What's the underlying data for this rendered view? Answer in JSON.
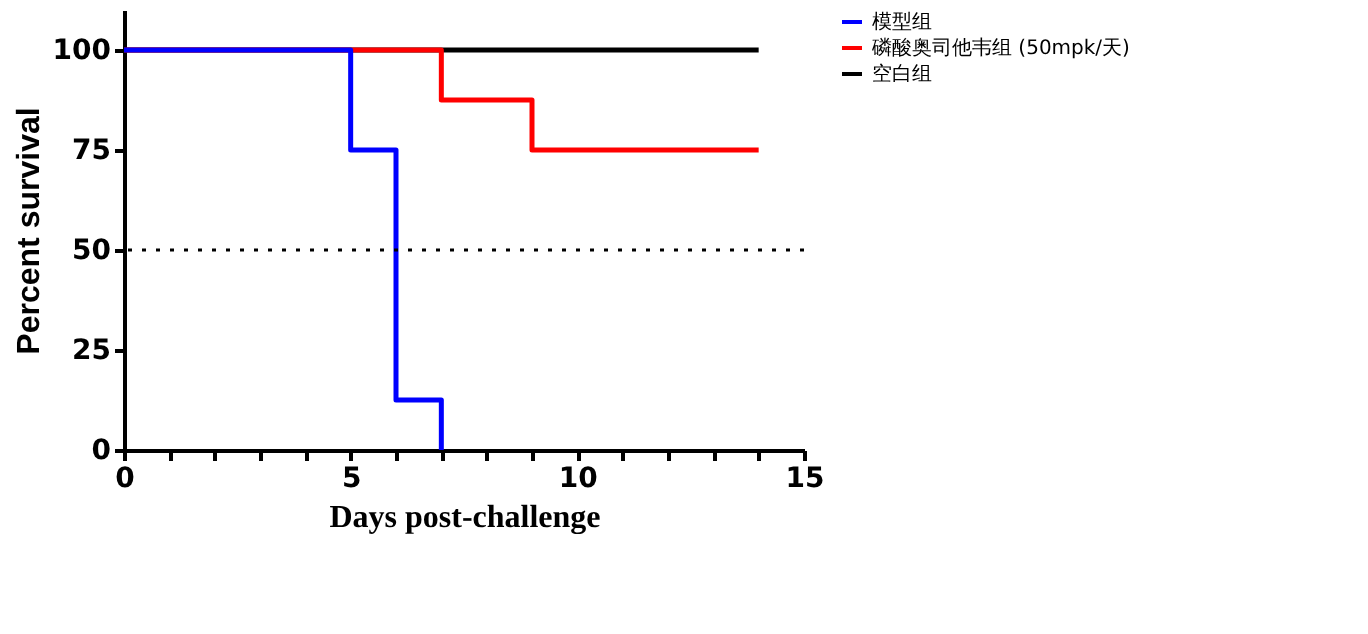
{
  "chart_data": {
    "type": "step",
    "xlabel": "Days post-challenge",
    "ylabel": "Percent survival",
    "xlim": [
      0,
      15
    ],
    "xticks": [
      0,
      {
        "value": 1,
        "label": null
      },
      {
        "value": 2,
        "label": null
      },
      {
        "value": 3,
        "label": null
      },
      {
        "value": 4,
        "label": null
      },
      5,
      {
        "value": 6,
        "label": null
      },
      {
        "value": 7,
        "label": null
      },
      {
        "value": 8,
        "label": null
      },
      {
        "value": 9,
        "label": null
      },
      10,
      {
        "value": 11,
        "label": null
      },
      {
        "value": 12,
        "label": null
      },
      {
        "value": 13,
        "label": null
      },
      {
        "value": 14,
        "label": null
      },
      15
    ],
    "ylim": [
      0,
      110
    ],
    "yticks": [
      0,
      25,
      50,
      75,
      100
    ],
    "series": [
      {
        "name": "模型组",
        "color": "#0000ff",
        "x": [
          0,
          5,
          6,
          7
        ],
        "values": [
          100,
          75,
          12.5,
          0
        ]
      },
      {
        "name": "磷酸奥司他韦组 (50mpk/天)",
        "color": "#ff0000",
        "x": [
          0,
          7,
          9,
          14
        ],
        "values": [
          100,
          87.5,
          75,
          75
        ]
      },
      {
        "name": "空白组",
        "color": "#000000",
        "x": [
          0,
          14
        ],
        "values": [
          100,
          100
        ]
      }
    ],
    "ref_lines": [
      {
        "axis": "y",
        "value": 50,
        "line_style": "dotted",
        "color": "#000000"
      }
    ],
    "grid": false,
    "legend": "top right",
    "line_style": "solid",
    "marker": "none"
  }
}
